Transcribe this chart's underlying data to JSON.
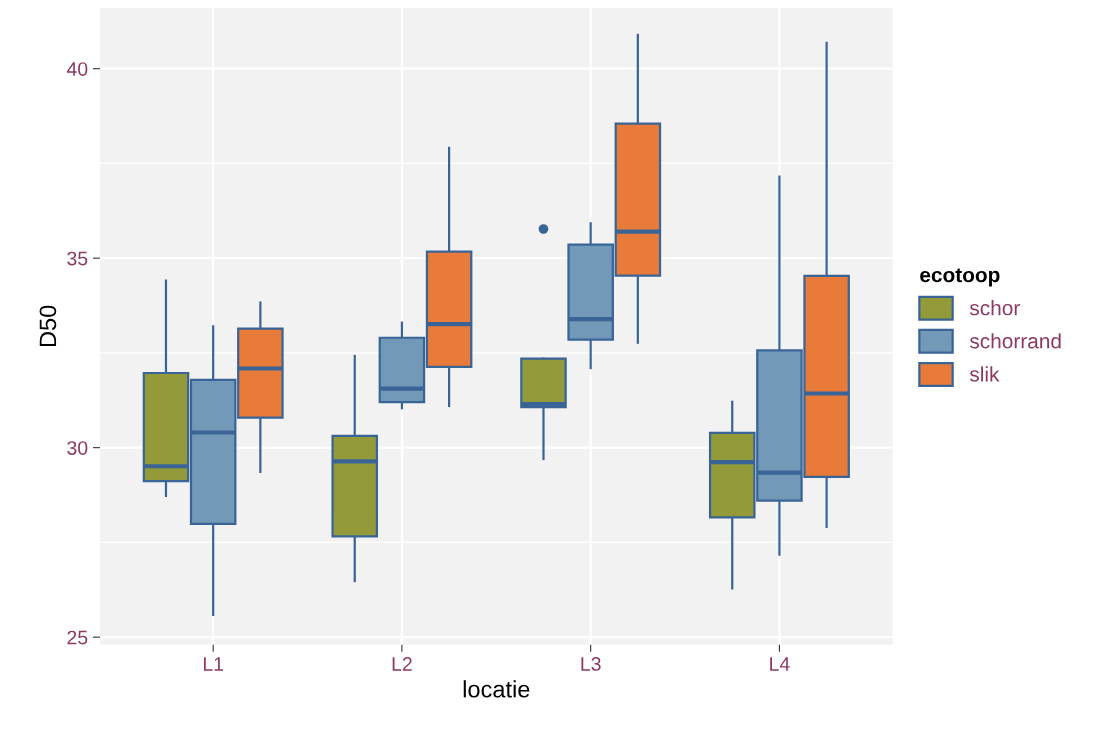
{
  "chart_data": {
    "type": "box",
    "xlabel": "locatie",
    "ylabel": "D50",
    "legend_title": "ecotoop",
    "legend": "right",
    "grid": true,
    "categories": [
      "L1",
      "L2",
      "L3",
      "L4"
    ],
    "ylim": [
      24.8,
      41.6
    ],
    "yticks": [
      25,
      30,
      35,
      40
    ],
    "series": [
      {
        "name": "schor",
        "color": "#939a3a",
        "boxes": [
          {
            "low": 28.73,
            "q1": 29.12,
            "median": 29.51,
            "q3": 31.97,
            "high": 34.41
          },
          {
            "low": 26.48,
            "q1": 27.66,
            "median": 29.64,
            "q3": 30.31,
            "high": 32.42
          },
          {
            "low": 29.7,
            "q1": 31.07,
            "median": 31.15,
            "q3": 32.35,
            "high": 32.35,
            "outliers": [
              35.77
            ]
          },
          {
            "low": 26.29,
            "q1": 28.16,
            "median": 29.62,
            "q3": 30.39,
            "high": 31.21
          }
        ]
      },
      {
        "name": "schorrand",
        "color": "#7299b8",
        "boxes": [
          {
            "low": 25.59,
            "q1": 27.99,
            "median": 30.4,
            "q3": 31.79,
            "high": 33.2
          },
          {
            "low": 31.04,
            "q1": 31.2,
            "median": 31.56,
            "q3": 32.9,
            "high": 33.3
          },
          {
            "low": 32.1,
            "q1": 32.85,
            "median": 33.39,
            "q3": 35.36,
            "high": 35.92
          },
          {
            "low": 27.18,
            "q1": 28.6,
            "median": 29.34,
            "q3": 32.57,
            "high": 37.15
          }
        ]
      },
      {
        "name": "slik",
        "color": "#e87b3a",
        "boxes": [
          {
            "low": 29.36,
            "q1": 30.79,
            "median": 32.09,
            "q3": 33.14,
            "high": 33.83
          },
          {
            "low": 31.1,
            "q1": 32.13,
            "median": 33.26,
            "q3": 35.17,
            "high": 37.91
          },
          {
            "low": 32.77,
            "q1": 34.54,
            "median": 35.7,
            "q3": 38.55,
            "high": 40.89
          },
          {
            "low": 27.91,
            "q1": 29.23,
            "median": 31.43,
            "q3": 34.53,
            "high": 40.68
          }
        ]
      }
    ]
  }
}
